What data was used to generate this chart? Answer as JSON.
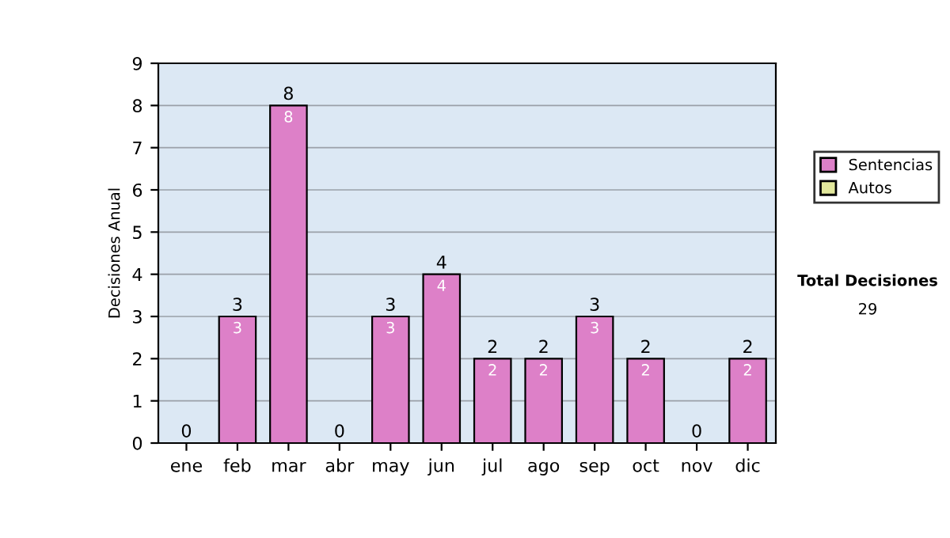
{
  "chart_data": {
    "type": "bar",
    "stacked": true,
    "ylabel": "Decisiones Anual",
    "categories": [
      "ene",
      "feb",
      "mar",
      "abr",
      "may",
      "jun",
      "jul",
      "ago",
      "sep",
      "oct",
      "nov",
      "dic"
    ],
    "series": [
      {
        "name": "Sentencias",
        "color": "#dd80c8",
        "values": [
          0,
          3,
          8,
          0,
          3,
          4,
          2,
          2,
          3,
          2,
          0,
          2
        ],
        "value_labels": [
          null,
          "3",
          "8",
          null,
          "3",
          "4",
          "2",
          "2",
          "3",
          "2",
          null,
          "2"
        ]
      },
      {
        "name": "Autos",
        "color": "#e2e89c",
        "values": [
          0,
          0,
          0,
          0,
          0,
          0,
          0,
          0,
          0,
          0,
          0,
          0
        ]
      }
    ],
    "totals": [
      "0",
      "3",
      "8",
      "0",
      "3",
      "4",
      "2",
      "2",
      "3",
      "2",
      "0",
      "2"
    ],
    "ylim": [
      0,
      9
    ],
    "yticks": [
      0,
      1,
      2,
      3,
      4,
      5,
      6,
      7,
      8,
      9
    ],
    "grid": "y",
    "legend": "right",
    "annotations": [
      "Total Decisiones",
      "29"
    ]
  }
}
